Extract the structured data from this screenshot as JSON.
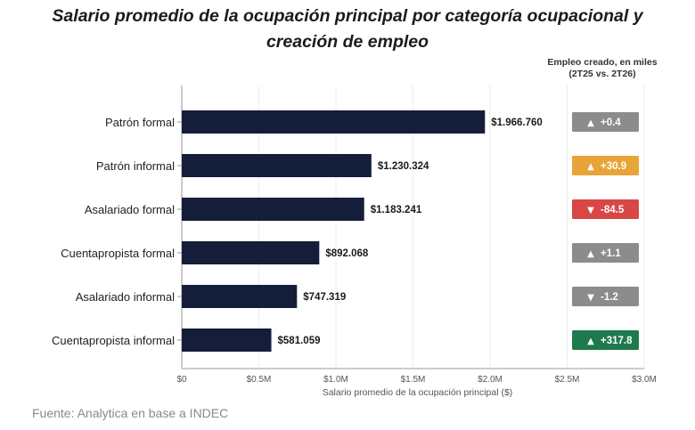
{
  "title_line1": "Salario promedio de la ocupación principal por categoría ocupacional y",
  "title_line2": "creación de empleo",
  "employment_header_line1": "Empleo creado, en miles",
  "employment_header_line2": "(2T25 vs. 2T26)",
  "source": "Fuente: Analytica en base a INDEC",
  "colors": {
    "bar": "#141e3a",
    "neutral": "#8c8c8c",
    "positive_orange": "#e7a538",
    "negative_red": "#d94646",
    "positive_green": "#1e7a4c"
  },
  "chart_data": {
    "type": "bar",
    "orientation": "horizontal",
    "categories": [
      "Patrón formal",
      "Patrón informal",
      "Asalariado formal",
      "Cuentapropista formal",
      "Asalariado informal",
      "Cuentapropista informal"
    ],
    "values": [
      1966760,
      1230324,
      1183241,
      892068,
      747319,
      581059
    ],
    "value_labels": [
      "$1.966.760",
      "$1.230.324",
      "$1.183.241",
      "$892.068",
      "$747.319",
      "$581.059"
    ],
    "xlabel": "Salario promedio de la ocupación principal ($)",
    "xlim": [
      0,
      3000000
    ],
    "x_ticks": [
      0,
      500000,
      1000000,
      1500000,
      2000000,
      2500000,
      3000000
    ],
    "x_tick_labels": [
      "$0",
      "$0.5M",
      "$1.0M",
      "$1.5M",
      "$2.0M",
      "$2.5M",
      "$3.0M"
    ],
    "grid": "vertical",
    "employment_created": [
      {
        "label": "+0.4",
        "arrow": "▲",
        "color": "#8c8c8c"
      },
      {
        "label": "+30.9",
        "arrow": "▲",
        "color": "#e7a538"
      },
      {
        "label": "-84.5",
        "arrow": "▼",
        "color": "#d94646"
      },
      {
        "label": "+1.1",
        "arrow": "▲",
        "color": "#8c8c8c"
      },
      {
        "label": "-1.2",
        "arrow": "▼",
        "color": "#8c8c8c"
      },
      {
        "label": "+317.8",
        "arrow": "▲",
        "color": "#1e7a4c"
      }
    ]
  }
}
